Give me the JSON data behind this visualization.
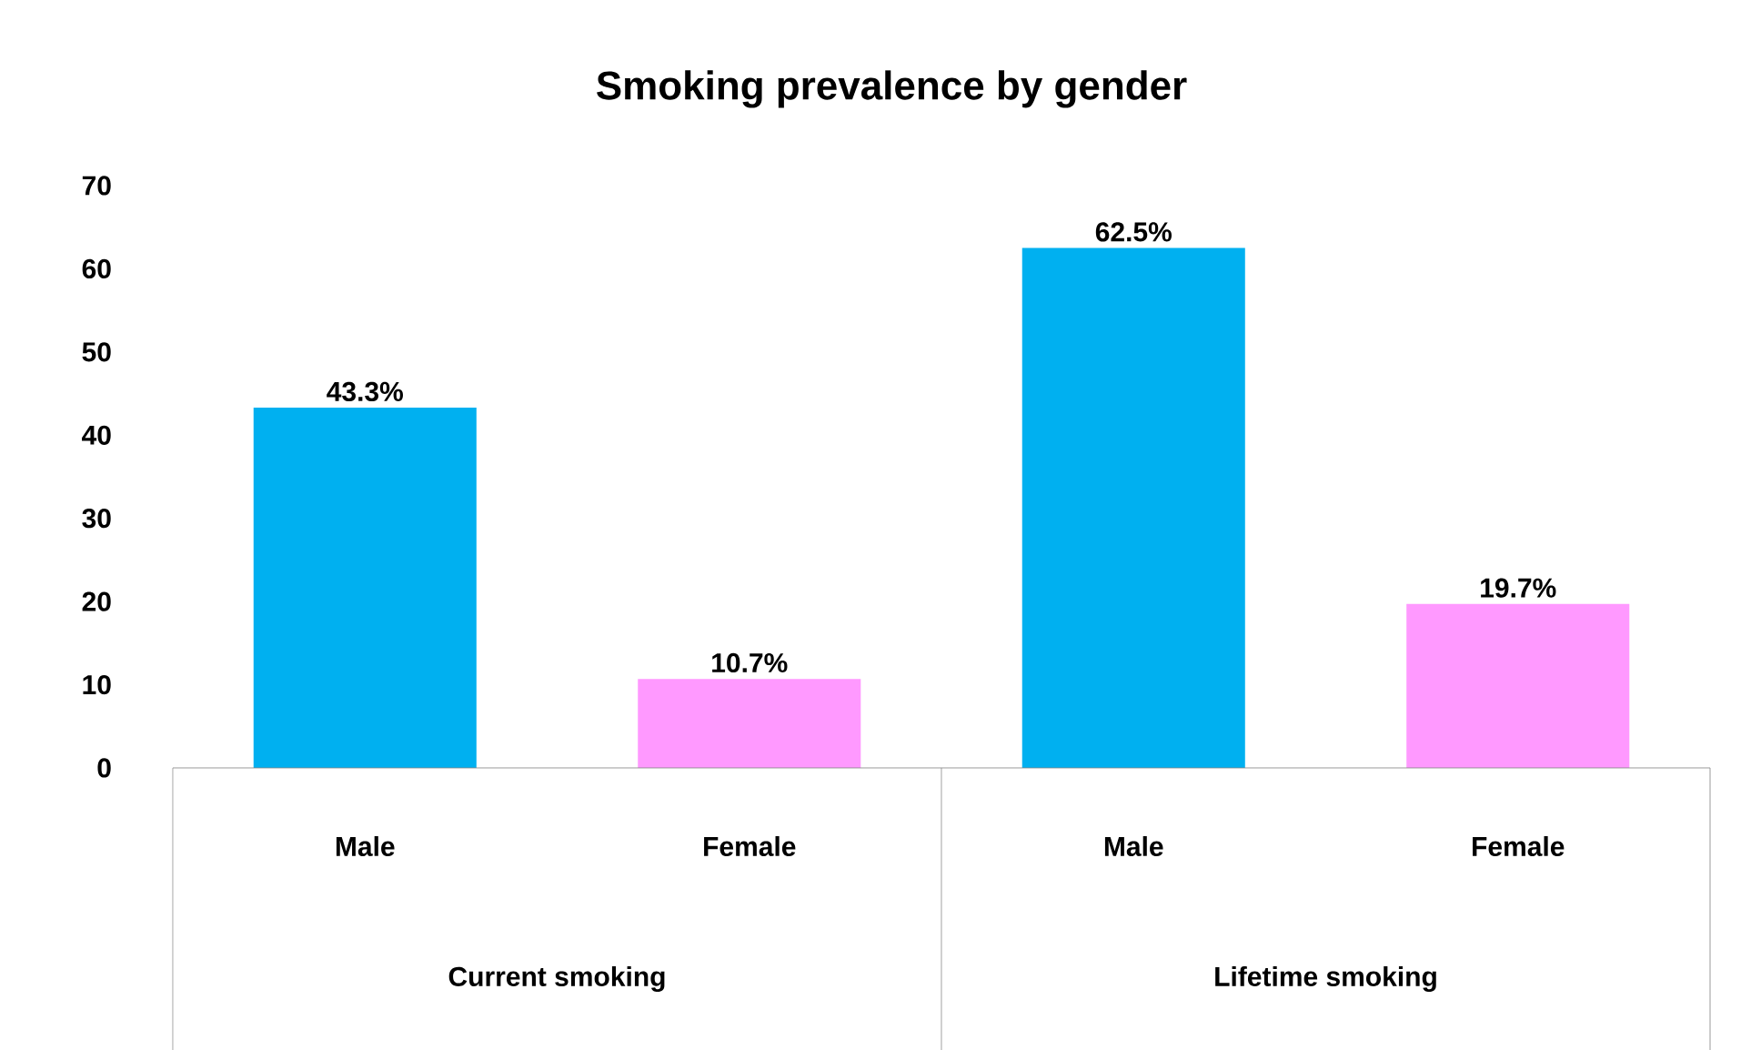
{
  "chart_data": {
    "type": "bar",
    "title": "Smoking prevalence by gender",
    "categories": [
      "Male",
      "Female",
      "Male",
      "Female"
    ],
    "values": [
      43.3,
      10.7,
      62.5,
      19.7
    ],
    "colors": [
      "#00b0f0",
      "#ff99ff",
      "#00b0f0",
      "#ff99ff"
    ],
    "value_labels": [
      "43.3%",
      "10.7%",
      "62.5%",
      "19.7%"
    ],
    "ylim": [
      0,
      70
    ],
    "yticks": [
      0,
      10,
      20,
      30,
      40,
      50,
      60,
      70
    ],
    "annotations": [
      "Current smoking",
      "Lifetime smoking"
    ]
  }
}
